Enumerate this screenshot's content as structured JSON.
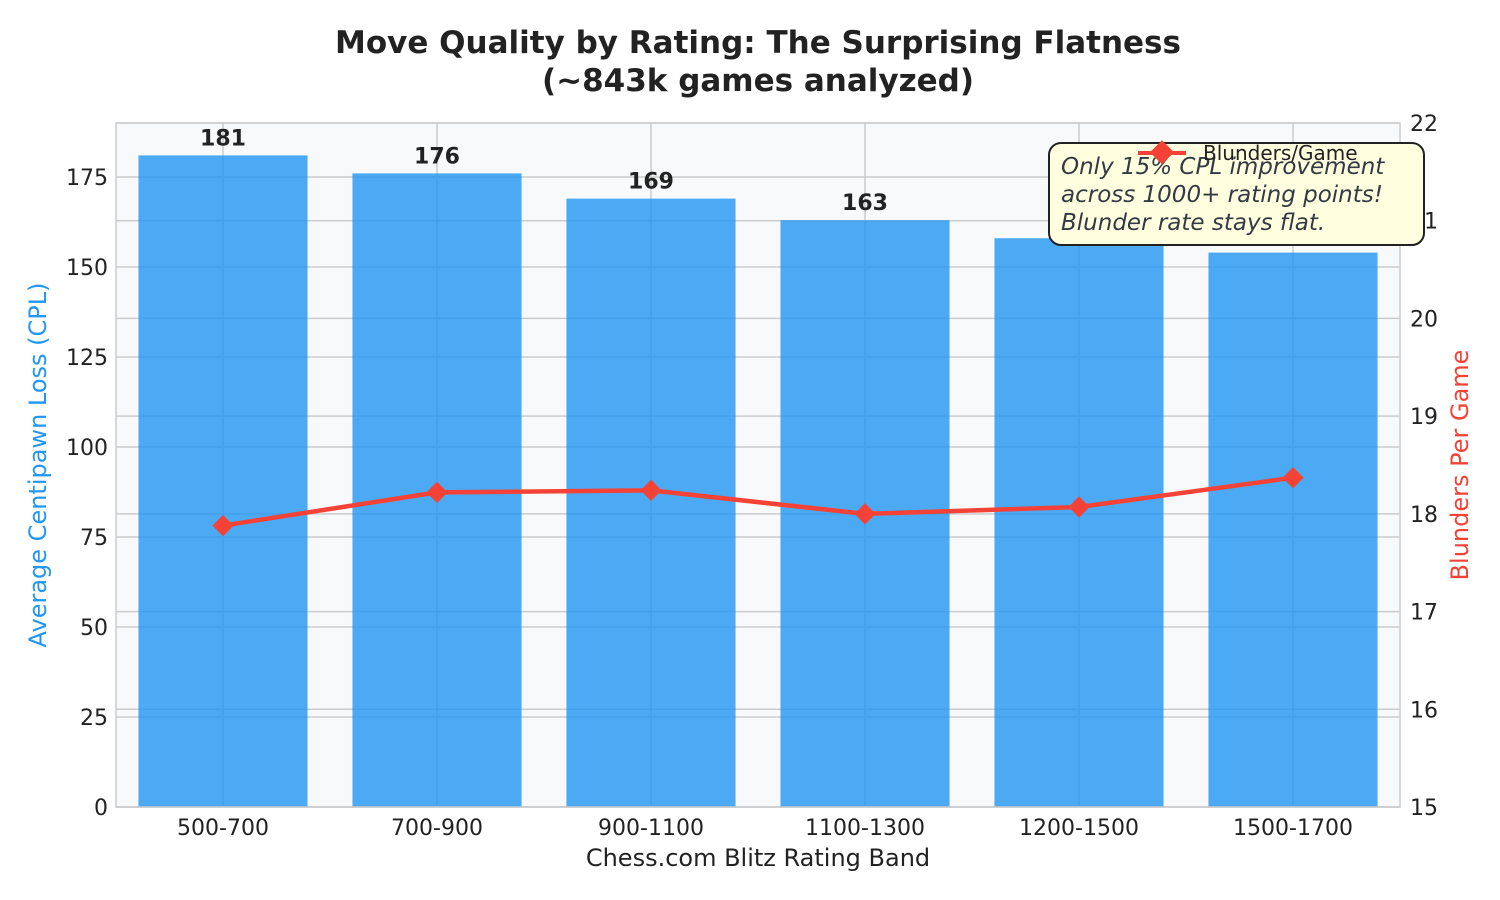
{
  "chart_data": {
    "type": "bar",
    "title_line1": "Move Quality by Rating: The Surprising Flatness",
    "title_line2": "(~843k games analyzed)",
    "xlabel": "Chess.com Blitz Rating Band",
    "ylabel": "Average Centipawn Loss (CPL)",
    "y2label": "Blunders Per Game",
    "categories": [
      "500-700",
      "700-900",
      "900-1100",
      "1100-1300",
      "1200-1500",
      "1500-1700"
    ],
    "bar_series": {
      "values": [
        181,
        176,
        169,
        163,
        158,
        154
      ],
      "labels": [
        "181",
        "176",
        "169",
        "163",
        "158",
        "154"
      ],
      "color": "#2196F3"
    },
    "line_series": {
      "name": "Blunders/Game",
      "values": [
        17.88,
        18.22,
        18.24,
        18.0,
        18.07,
        18.37
      ],
      "color": "#F44336",
      "marker": "diamond"
    },
    "ylim": [
      0,
      190
    ],
    "yticks": [
      0,
      25,
      50,
      75,
      100,
      125,
      150,
      175
    ],
    "y2lim": [
      15,
      22
    ],
    "y2ticks": [
      15,
      16,
      17,
      18,
      19,
      20,
      21,
      22
    ],
    "grid": true,
    "legend_position": "top-right",
    "annotation": {
      "lines": [
        "Only 15% CPL improvement",
        "across 1000+ rating points!",
        "Blunder rate stays flat."
      ],
      "background": "#FFFFE0"
    },
    "colors": {
      "plot_background": "#F8F9FA",
      "grid": "#CCCCCC",
      "left_axis_label": "#2196F3",
      "right_axis_label": "#F44336"
    }
  }
}
